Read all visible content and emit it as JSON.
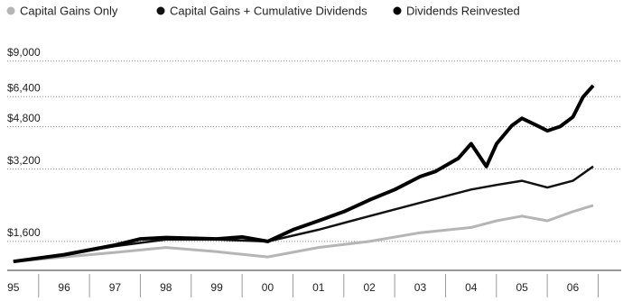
{
  "chart_data": {
    "type": "line",
    "log_scale": true,
    "grid": true,
    "legend": "top-left",
    "xlim": [
      1994.88,
      2006.95
    ],
    "ylim": [
      1213,
      10050
    ],
    "xticks": [
      {
        "value": 1995,
        "label": "95"
      },
      {
        "value": 1996,
        "label": "96"
      },
      {
        "value": 1997,
        "label": "97"
      },
      {
        "value": 1998,
        "label": "98"
      },
      {
        "value": 1999,
        "label": "99"
      },
      {
        "value": 2000,
        "label": "00"
      },
      {
        "value": 2001,
        "label": "01"
      },
      {
        "value": 2002,
        "label": "02"
      },
      {
        "value": 2003,
        "label": "03"
      },
      {
        "value": 2004,
        "label": "04"
      },
      {
        "value": 2005,
        "label": "05"
      },
      {
        "value": 2006,
        "label": "06"
      }
    ],
    "yticks": [
      {
        "value": 1600,
        "label": "$1,600"
      },
      {
        "value": 3200,
        "label": "$3,200"
      },
      {
        "value": 4800,
        "label": "$4,800"
      },
      {
        "value": 6400,
        "label": "$6,400"
      },
      {
        "value": 9000,
        "label": "$9,000"
      }
    ],
    "series": [
      {
        "name": "Capital Gains Only",
        "color": "#b5b5b5",
        "width": 3,
        "x": [
          1995,
          1996,
          1997,
          1998,
          1999,
          2000,
          2001,
          2002,
          2003,
          2004,
          2004.5,
          2005,
          2005.5,
          2006,
          2006.4
        ],
        "values": [
          1320,
          1380,
          1440,
          1510,
          1450,
          1380,
          1510,
          1600,
          1740,
          1830,
          1950,
          2040,
          1950,
          2130,
          2260
        ]
      },
      {
        "name": "Capital Gains + Cumulative Dividends",
        "color": "#111111",
        "width": 2.5,
        "x": [
          1995,
          1996,
          1997,
          1998,
          1999,
          2000,
          2001,
          2002,
          2003,
          2004,
          2004.5,
          2005,
          2005.5,
          2006,
          2006.4
        ],
        "values": [
          1320,
          1410,
          1530,
          1630,
          1630,
          1600,
          1790,
          2040,
          2320,
          2630,
          2750,
          2860,
          2680,
          2860,
          3280
        ]
      },
      {
        "name": "Dividends Reinvested",
        "color": "#000000",
        "width": 4,
        "x": [
          1995,
          1996,
          1997,
          1997.5,
          1998,
          1999,
          1999.5,
          2000,
          2000.5,
          2001,
          2001.5,
          2002,
          2002.5,
          2003,
          2003.3,
          2003.75,
          2004,
          2004.3,
          2004.5,
          2004.8,
          2005,
          2005.3,
          2005.5,
          2005.75,
          2006,
          2006.2,
          2006.4
        ],
        "values": [
          1320,
          1410,
          1545,
          1640,
          1660,
          1640,
          1670,
          1600,
          1790,
          1950,
          2130,
          2380,
          2630,
          2980,
          3130,
          3550,
          4080,
          3280,
          4080,
          4850,
          5200,
          4850,
          4620,
          4810,
          5270,
          6380,
          7120
        ]
      }
    ]
  }
}
